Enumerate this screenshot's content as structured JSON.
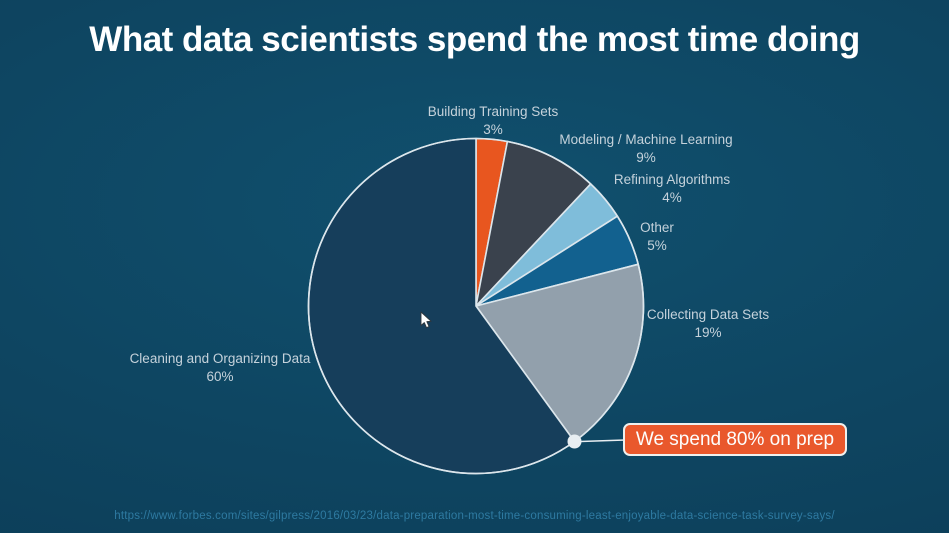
{
  "title": "What data scientists spend the most time doing",
  "source_url": "https://www.forbes.com/sites/gilpress/2016/03/23/data-preparation-most-time-consuming-least-enjoyable-data-science-task-survey-says/",
  "callout": {
    "text": "We spend 80% on prep",
    "background_color": "#e9582c"
  },
  "colors": {
    "background": "#0e4561",
    "title_text": "#ffffff",
    "label_text": "#c5d2db",
    "slice_stroke": "#dce6ec",
    "leader_line": "#e8eef2",
    "source_text": "#2e7aa1"
  },
  "chart_data": {
    "type": "pie",
    "title": "What data scientists spend the most time doing",
    "start_angle_deg": -90,
    "direction": "clockwise",
    "legend_position": "labels-around-pie",
    "slices": [
      {
        "label": "Building Training Sets",
        "value": 3,
        "pct_label": "3%",
        "color": "#e8561f"
      },
      {
        "label": "Modeling / Machine Learning",
        "value": 9,
        "pct_label": "9%",
        "color": "#3a424d"
      },
      {
        "label": "Refining Algorithms",
        "value": 4,
        "pct_label": "4%",
        "color": "#7fbdda"
      },
      {
        "label": "Other",
        "value": 5,
        "pct_label": "5%",
        "color": "#12618f"
      },
      {
        "label": "Collecting Data Sets",
        "value": 19,
        "pct_label": "19%",
        "color": "#92a0ac"
      },
      {
        "label": "Cleaning and Organizing Data",
        "value": 60,
        "pct_label": "60%",
        "color": "#163e5b"
      }
    ],
    "annotation": {
      "text": "We spend 80% on prep",
      "attached_to_boundary_after_slice": 4
    }
  }
}
